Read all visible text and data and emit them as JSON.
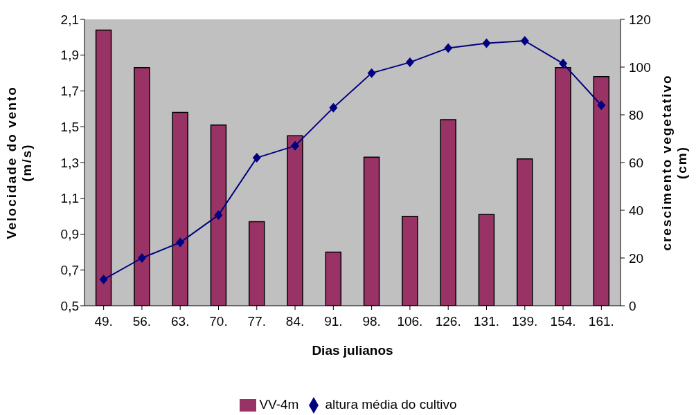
{
  "chart_data": {
    "type": "bar",
    "categories": [
      "49.",
      "56.",
      "63.",
      "70.",
      "77.",
      "84.",
      "91.",
      "98.",
      "106.",
      "126.",
      "131.",
      "139.",
      "154.",
      "161."
    ],
    "xlabel": "Dias julianos",
    "ylabel": "Velocidade do vento\n(m/s)",
    "y2label": "crescimento vegetativo\n(cm)",
    "series": [
      {
        "name": "VV-4m",
        "color": "#993366",
        "values": [
          2.04,
          1.83,
          1.58,
          1.51,
          0.97,
          1.45,
          0.8,
          1.33,
          1.0,
          1.54,
          1.01,
          1.32,
          1.83,
          1.78
        ]
      },
      {
        "name": "altura média do cultivo",
        "type": "line",
        "axis": "y2",
        "color": "#000080",
        "marker": "diamond",
        "values": [
          11,
          20,
          26.5,
          38,
          62,
          67,
          83,
          97.5,
          102,
          108,
          110,
          111,
          101.5,
          84
        ]
      }
    ],
    "ylim": [
      0.5,
      2.1
    ],
    "yticks": [
      {
        "value": 0.5,
        "label": "0,5"
      },
      {
        "value": 0.7,
        "label": "0,7"
      },
      {
        "value": 0.9,
        "label": "0,9"
      },
      {
        "value": 1.1,
        "label": "1,1"
      },
      {
        "value": 1.3,
        "label": "1,3"
      },
      {
        "value": 1.5,
        "label": "1,5"
      },
      {
        "value": 1.7,
        "label": "1,7"
      },
      {
        "value": 1.9,
        "label": "1,9"
      },
      {
        "value": 2.1,
        "label": "2,1"
      }
    ],
    "y2lim": [
      0,
      120
    ],
    "y2ticks": [
      0,
      20,
      40,
      60,
      80,
      100,
      120
    ],
    "grid": false,
    "legend": "bottom"
  }
}
